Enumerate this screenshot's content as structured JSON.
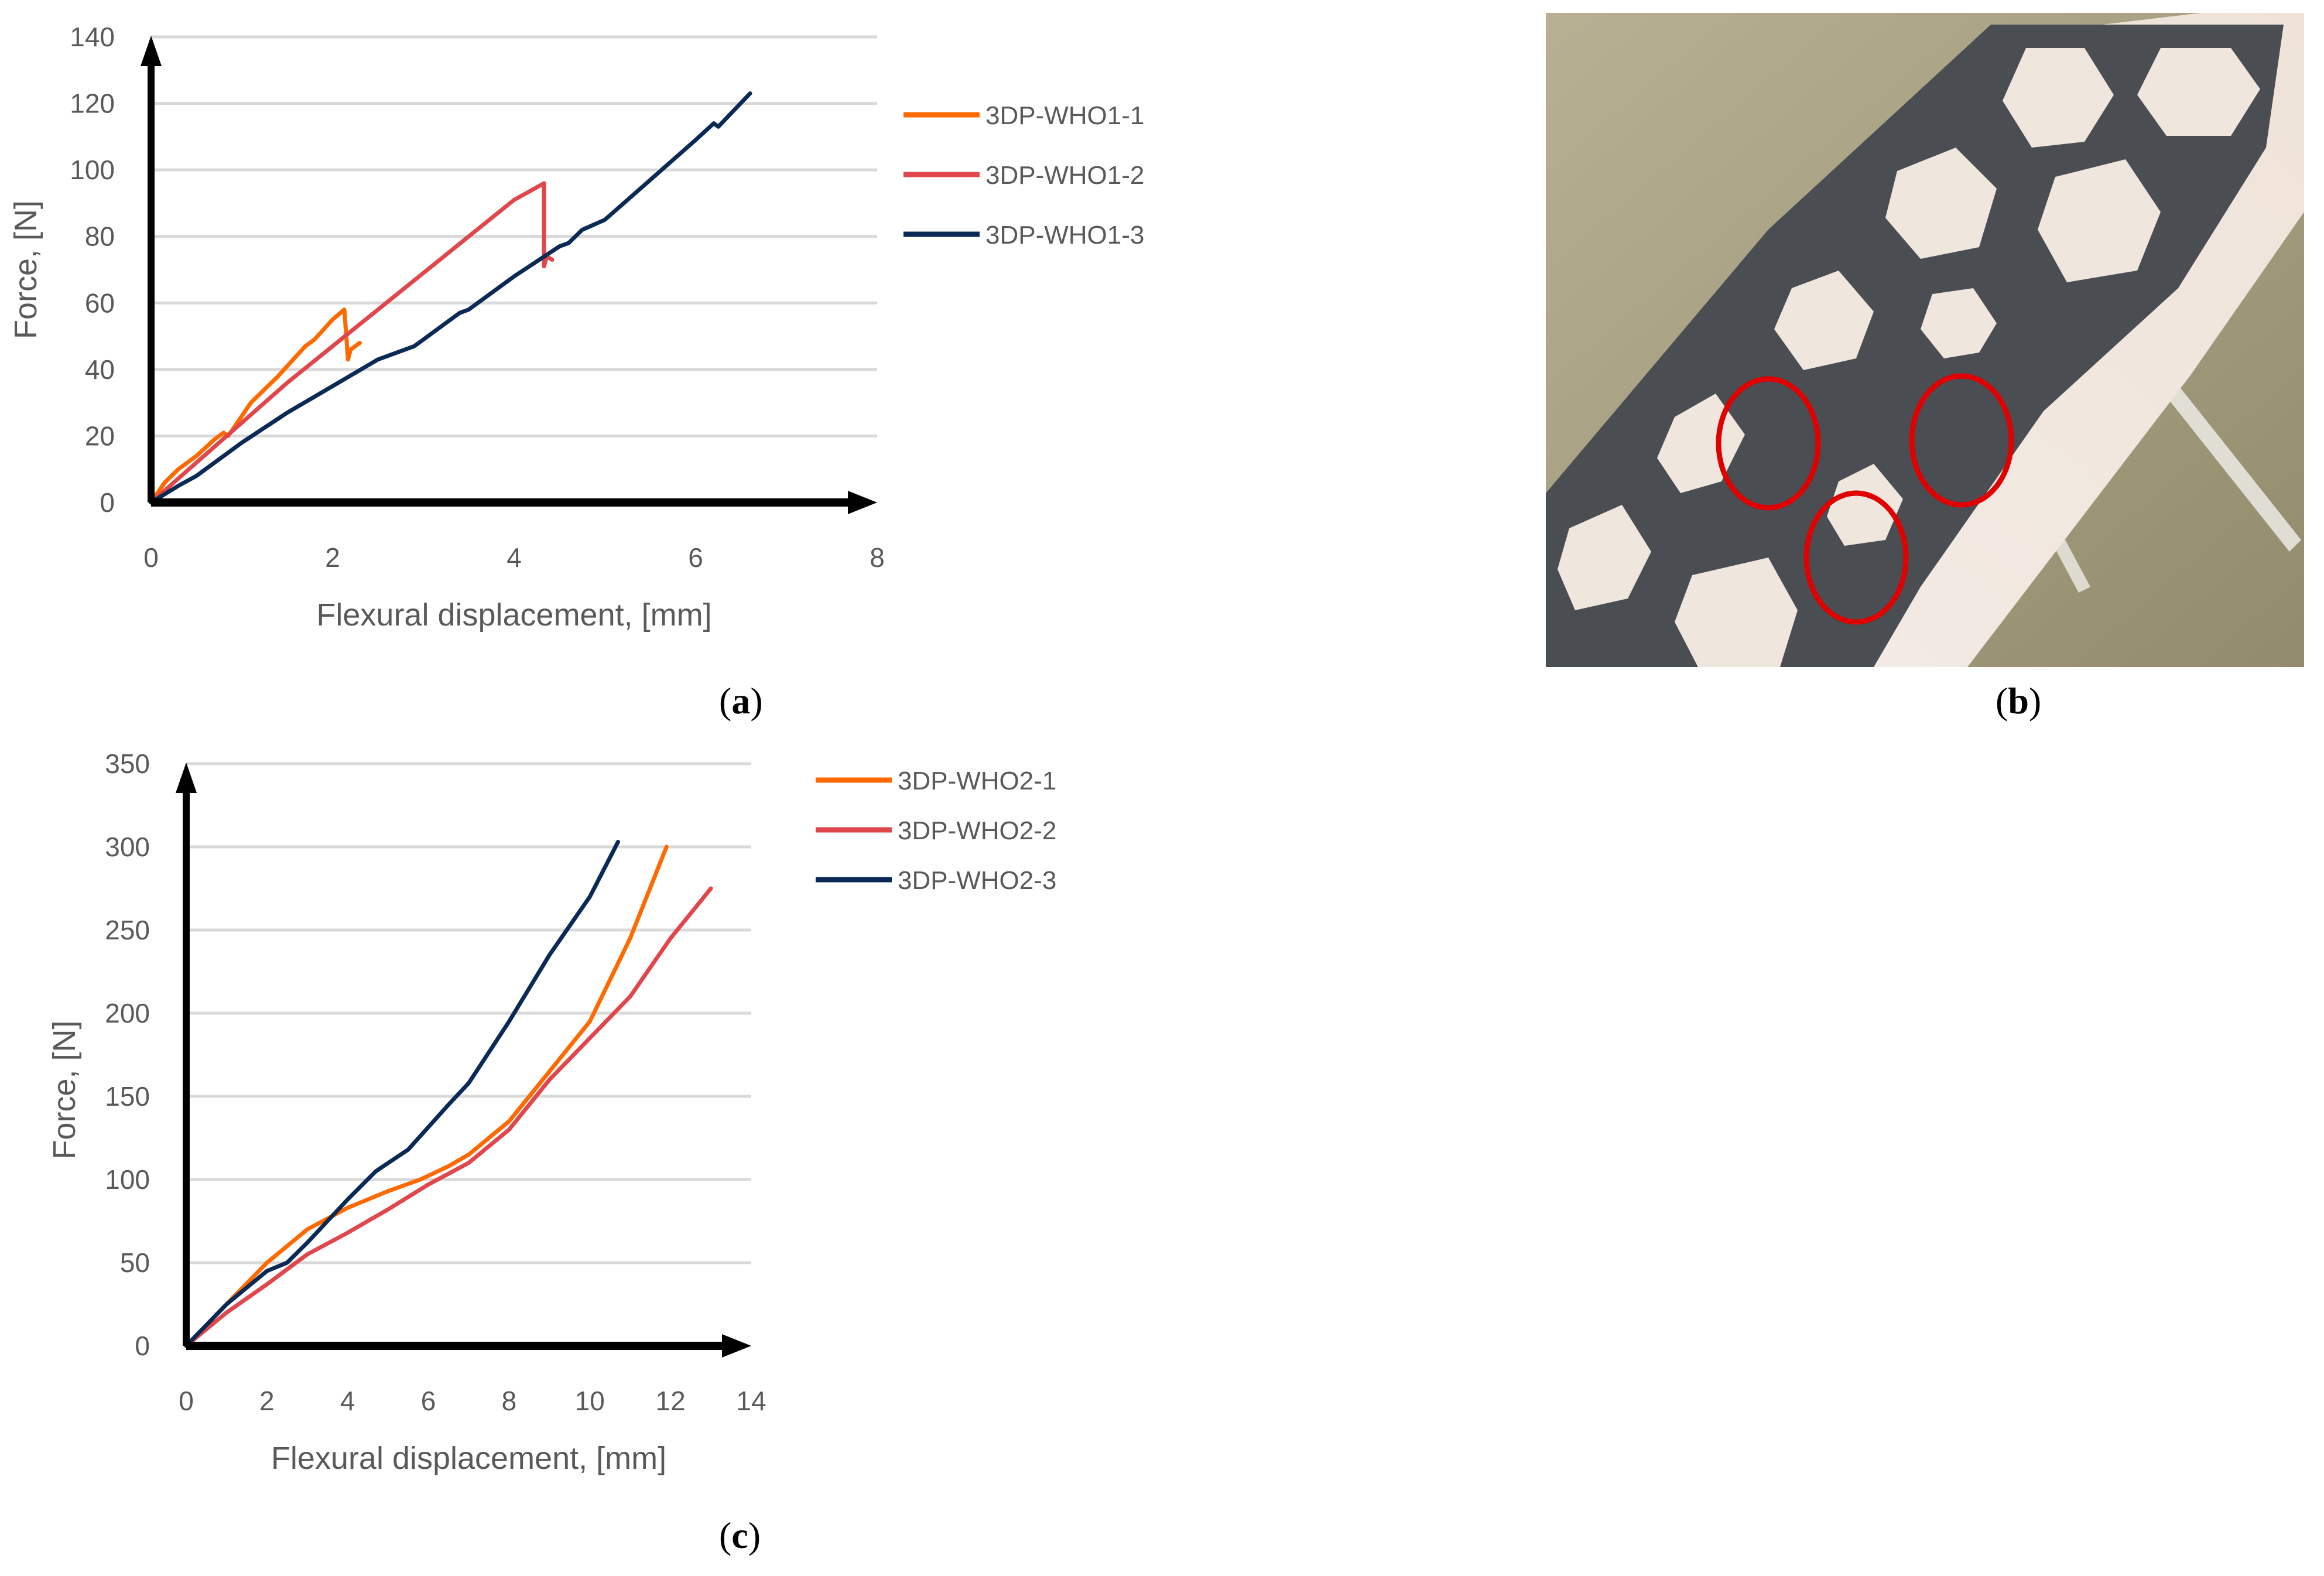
{
  "figure": {
    "panels": [
      {
        "id": "a",
        "label": "(a)",
        "label_letter": "a"
      },
      {
        "id": "b",
        "label": "(b)",
        "label_letter": "b"
      },
      {
        "id": "c",
        "label": "(c)",
        "label_letter": "c"
      }
    ]
  },
  "colors": {
    "series1": "#FF6A00",
    "series2": "#E0474C",
    "series3": "#0A2A55",
    "gridline": "#D9D9D9",
    "axis": "#000000",
    "text": "#595959",
    "highlight_circle": "#E00000"
  },
  "photo": {
    "description": "3D-printed grey hexagonal-lattice wrist-hand orthosis on a white forearm model with cable ties; three red circles mark fracture locations",
    "markers": [
      "red-circle",
      "red-circle",
      "red-circle"
    ]
  },
  "chart_data": [
    {
      "panel": "a",
      "type": "line",
      "title": "",
      "xlabel": "Flexural displacement, [mm]",
      "ylabel": "Force, [N]",
      "xlim": [
        0,
        8
      ],
      "ylim": [
        0,
        140
      ],
      "xticks": [
        "0",
        "2",
        "4",
        "6",
        "8"
      ],
      "yticks": [
        "0",
        "20",
        "40",
        "60",
        "80",
        "100",
        "120",
        "140"
      ],
      "grid": "horizontal",
      "legend_position": "right",
      "series": [
        {
          "name": "3DP-WHO1-1",
          "color": "#FF6A00",
          "x": [
            0,
            0.15,
            0.3,
            0.5,
            0.7,
            0.8,
            0.85,
            1.1,
            1.4,
            1.6,
            1.7,
            1.8,
            2.0,
            2.13,
            2.17,
            2.2,
            2.3
          ],
          "y": [
            0,
            6,
            10,
            14,
            19,
            21,
            20,
            30,
            38,
            44,
            47,
            49,
            55,
            58,
            43,
            46,
            48
          ]
        },
        {
          "name": "3DP-WHO1-2",
          "color": "#E0474C",
          "x": [
            0,
            0.5,
            1.0,
            1.5,
            2.0,
            2.5,
            3.0,
            3.5,
            4.0,
            4.2,
            4.33,
            4.33,
            4.36,
            4.42
          ],
          "y": [
            0,
            12,
            24,
            36,
            47,
            58,
            69,
            80,
            91,
            94,
            96,
            71,
            74,
            73
          ]
        },
        {
          "name": "3DP-WHO1-3",
          "color": "#0A2A55",
          "x": [
            0,
            0.3,
            0.5,
            0.8,
            1.0,
            1.5,
            2.0,
            2.5,
            2.9,
            3.0,
            3.4,
            3.5,
            4.0,
            4.5,
            4.6,
            4.75,
            5.0,
            5.5,
            6.0,
            6.2,
            6.25,
            6.6
          ],
          "y": [
            0,
            5,
            8,
            14,
            18,
            27,
            35,
            43,
            47,
            49,
            57,
            58,
            68,
            77,
            78,
            82,
            85,
            97,
            109,
            114,
            113,
            123
          ]
        }
      ]
    },
    {
      "panel": "c",
      "type": "line",
      "title": "",
      "xlabel": "Flexural displacement, [mm]",
      "ylabel": "Force, [N]",
      "xlim": [
        0,
        14
      ],
      "ylim": [
        0,
        350
      ],
      "xticks": [
        "0",
        "2",
        "4",
        "6",
        "8",
        "10",
        "12",
        "14"
      ],
      "yticks": [
        "0",
        "50",
        "100",
        "150",
        "200",
        "250",
        "300",
        "350"
      ],
      "grid": "horizontal",
      "legend_position": "right",
      "series": [
        {
          "name": "3DP-WHO2-1",
          "color": "#FF6A00",
          "x": [
            0,
            1,
            2,
            3,
            4,
            5,
            5.8,
            6.5,
            7,
            8,
            9,
            10,
            11,
            11.9
          ],
          "y": [
            0,
            25,
            50,
            70,
            83,
            93,
            100,
            108,
            115,
            135,
            165,
            195,
            245,
            300
          ]
        },
        {
          "name": "3DP-WHO2-2",
          "color": "#E0474C",
          "x": [
            0,
            1,
            2,
            3,
            4,
            5,
            6,
            7,
            8,
            9,
            10,
            11,
            12,
            13
          ],
          "y": [
            0,
            20,
            37,
            55,
            68,
            82,
            97,
            110,
            130,
            160,
            185,
            210,
            245,
            275
          ]
        },
        {
          "name": "3DP-WHO2-3",
          "color": "#0A2A55",
          "x": [
            0,
            1,
            2,
            2.5,
            3,
            4,
            4.7,
            5.5,
            6.5,
            7,
            8,
            9,
            10,
            10.7
          ],
          "y": [
            0,
            25,
            45,
            50,
            62,
            88,
            105,
            118,
            145,
            158,
            195,
            235,
            270,
            303
          ]
        }
      ]
    }
  ]
}
